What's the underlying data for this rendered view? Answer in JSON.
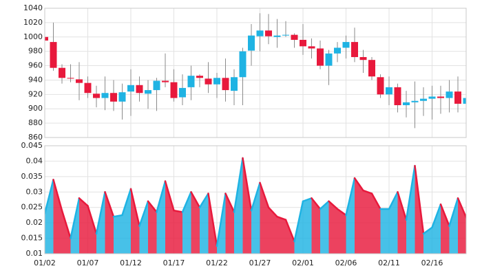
{
  "chart_data": [
    {
      "type": "candlestick",
      "open": [
        1000,
        993,
        957,
        943,
        941,
        936,
        921,
        915,
        922,
        910,
        924,
        933,
        921,
        926,
        939,
        937,
        916,
        930,
        946,
        942,
        934,
        943,
        925,
        944,
        981,
        1001,
        1009,
        1000,
        1002,
        1003,
        996,
        987,
        984,
        960,
        977,
        985,
        993,
        972,
        968,
        944,
        920,
        930,
        905,
        909,
        911,
        914,
        917,
        915,
        924,
        907
      ],
      "high": [
        1002,
        1020,
        962,
        962,
        965,
        945,
        932,
        945,
        940,
        935,
        955,
        945,
        940,
        943,
        977,
        955,
        948,
        960,
        948,
        965,
        950,
        970,
        955,
        985,
        1018,
        1033,
        1032,
        1025,
        1022,
        1005,
        1018,
        998,
        995,
        982,
        993,
        1002,
        1013,
        982,
        972,
        948,
        945,
        935,
        925,
        938,
        930,
        932,
        932,
        940,
        945,
        935
      ],
      "low": [
        993,
        953,
        935,
        937,
        912,
        915,
        902,
        898,
        897,
        885,
        890,
        910,
        900,
        897,
        930,
        910,
        905,
        912,
        930,
        922,
        915,
        910,
        905,
        905,
        960,
        980,
        990,
        985,
        1000,
        985,
        975,
        970,
        955,
        933,
        965,
        970,
        965,
        950,
        940,
        915,
        905,
        895,
        888,
        873,
        890,
        885,
        893,
        895,
        895,
        900
      ],
      "close": [
        995,
        957,
        943,
        942,
        936,
        922,
        915,
        922,
        910,
        923,
        933,
        922,
        926,
        939,
        937,
        915,
        929,
        946,
        943,
        934,
        943,
        926,
        944,
        980,
        1002,
        1009,
        1001,
        1002,
        1003,
        996,
        987,
        984,
        960,
        977,
        985,
        993,
        972,
        968,
        945,
        920,
        930,
        905,
        909,
        911,
        914,
        917,
        915,
        924,
        907,
        915
      ],
      "up_color": "#1fb3e3",
      "down_color": "#e8193c",
      "ylim": [
        860,
        1040
      ],
      "yticks": [
        860,
        880,
        900,
        920,
        940,
        960,
        980,
        1000,
        1020,
        1040
      ],
      "grid": true
    },
    {
      "type": "area",
      "categories": [
        "01/02",
        null,
        null,
        null,
        null,
        "01/07",
        null,
        null,
        null,
        null,
        "01/12",
        null,
        null,
        null,
        null,
        "01/17",
        null,
        null,
        null,
        null,
        "01/22",
        null,
        null,
        null,
        null,
        "01/27",
        null,
        null,
        null,
        null,
        "02/01",
        null,
        null,
        null,
        null,
        "02/06",
        null,
        null,
        null,
        null,
        "02/11",
        null,
        null,
        null,
        null,
        "02/16",
        null,
        null,
        null,
        null
      ],
      "values": [
        0.023,
        0.034,
        0.024,
        0.015,
        0.028,
        0.0255,
        0.0165,
        0.03,
        0.022,
        0.0225,
        0.031,
        0.019,
        0.027,
        0.0235,
        0.0335,
        0.024,
        0.0235,
        0.03,
        0.025,
        0.0295,
        0.0125,
        0.0295,
        0.0235,
        0.041,
        0.024,
        0.033,
        0.025,
        0.022,
        0.021,
        0.014,
        0.027,
        0.028,
        0.0245,
        0.027,
        0.0245,
        0.0225,
        0.0345,
        0.0305,
        0.0295,
        0.0245,
        0.0245,
        0.03,
        0.021,
        0.0385,
        0.0165,
        0.0185,
        0.026,
        0.019,
        0.028,
        0.0215
      ],
      "up_color": "#1fb3e3",
      "down_color": "#e8193c",
      "ylim": [
        0.01,
        0.045
      ],
      "yticks": [
        0.01,
        0.015,
        0.02,
        0.025,
        0.03,
        0.035,
        0.04,
        0.045
      ],
      "grid": true
    }
  ]
}
